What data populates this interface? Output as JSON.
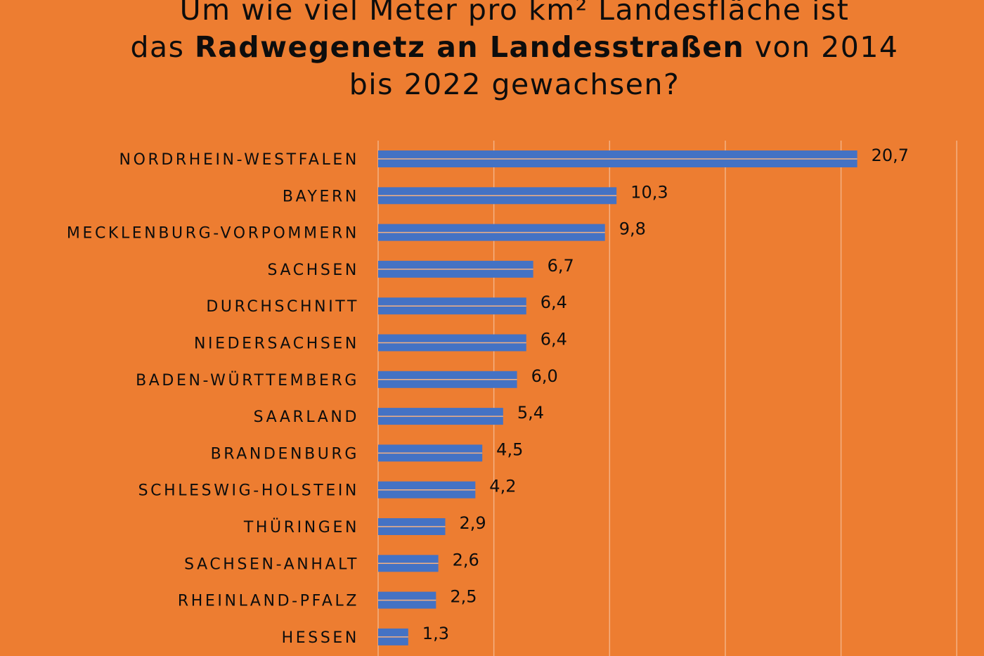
{
  "chart_data": {
    "type": "bar",
    "orientation": "horizontal",
    "title": {
      "line1": "Um wie viel Meter pro km² Landesfläche ist",
      "line2_prefix": "das ",
      "line2_bold": "Radwegenetz an Landesstraßen",
      "line2_suffix": " von 2014",
      "line3": "bis 2022 gewachsen?"
    },
    "categories": [
      "NORDRHEIN-WESTFALEN",
      "BAYERN",
      "MECKLENBURG-VORPOMMERN",
      "SACHSEN",
      "DURCHSCHNITT",
      "NIEDERSACHSEN",
      "BADEN-WÜRTTEMBERG",
      "SAARLAND",
      "BRANDENBURG",
      "SCHLESWIG-HOLSTEIN",
      "THÜRINGEN",
      "SACHSEN-ANHALT",
      "RHEINLAND-PFALZ",
      "HESSEN"
    ],
    "values": [
      20.7,
      10.3,
      9.8,
      6.7,
      6.4,
      6.4,
      6.0,
      5.4,
      4.5,
      4.2,
      2.9,
      2.6,
      2.5,
      1.3
    ],
    "value_labels": [
      "20,7",
      "10,3",
      "9,8",
      "6,7",
      "6,4",
      "6,4",
      "6,0",
      "5,4",
      "4,5",
      "4,2",
      "2,9",
      "2,6",
      "2,5",
      "1,3"
    ],
    "xlim": [
      0,
      25
    ],
    "grid": true,
    "bar_color": "#4472C4",
    "background_color": "#ED7D31",
    "grid_color": "#F4B183"
  }
}
